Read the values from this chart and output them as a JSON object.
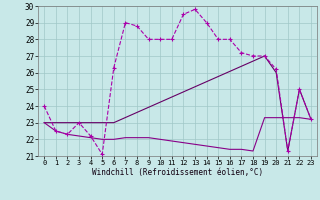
{
  "xlabel": "Windchill (Refroidissement éolien,°C)",
  "xlim": [
    -0.5,
    23.5
  ],
  "ylim": [
    21,
    30
  ],
  "yticks": [
    21,
    22,
    23,
    24,
    25,
    26,
    27,
    28,
    29,
    30
  ],
  "xticks": [
    0,
    1,
    2,
    3,
    4,
    5,
    6,
    7,
    8,
    9,
    10,
    11,
    12,
    13,
    14,
    15,
    16,
    17,
    18,
    19,
    20,
    21,
    22,
    23
  ],
  "bg_color": "#c8e8e8",
  "grid_color": "#a0c8c8",
  "line_color_dashed": "#aa00aa",
  "line_color_solid1": "#660066",
  "line_color_solid2": "#880088",
  "line1_x": [
    0,
    1,
    2,
    3,
    4,
    5,
    6,
    7,
    8,
    9,
    10,
    11,
    12,
    13,
    14,
    15,
    16,
    17,
    18,
    19,
    20,
    21,
    22,
    23
  ],
  "line1_y": [
    24.0,
    22.5,
    22.3,
    23.0,
    22.2,
    21.1,
    26.3,
    29.0,
    28.8,
    28.0,
    28.0,
    28.0,
    29.5,
    29.8,
    29.0,
    28.0,
    28.0,
    27.2,
    27.0,
    27.0,
    26.2,
    21.3,
    25.0,
    23.2
  ],
  "line2_x": [
    0,
    6,
    19,
    20,
    21,
    22,
    23
  ],
  "line2_y": [
    23.0,
    23.0,
    27.0,
    26.0,
    21.3,
    25.0,
    23.2
  ],
  "line3_x": [
    0,
    1,
    2,
    3,
    4,
    5,
    6,
    7,
    8,
    9,
    10,
    11,
    12,
    13,
    14,
    15,
    16,
    17,
    18,
    19,
    20,
    21,
    22,
    23
  ],
  "line3_y": [
    23.0,
    22.5,
    22.3,
    22.2,
    22.1,
    22.0,
    22.0,
    22.1,
    22.1,
    22.1,
    22.0,
    21.9,
    21.8,
    21.7,
    21.6,
    21.5,
    21.4,
    21.4,
    21.3,
    23.3,
    23.3,
    23.3,
    23.3,
    23.2
  ]
}
